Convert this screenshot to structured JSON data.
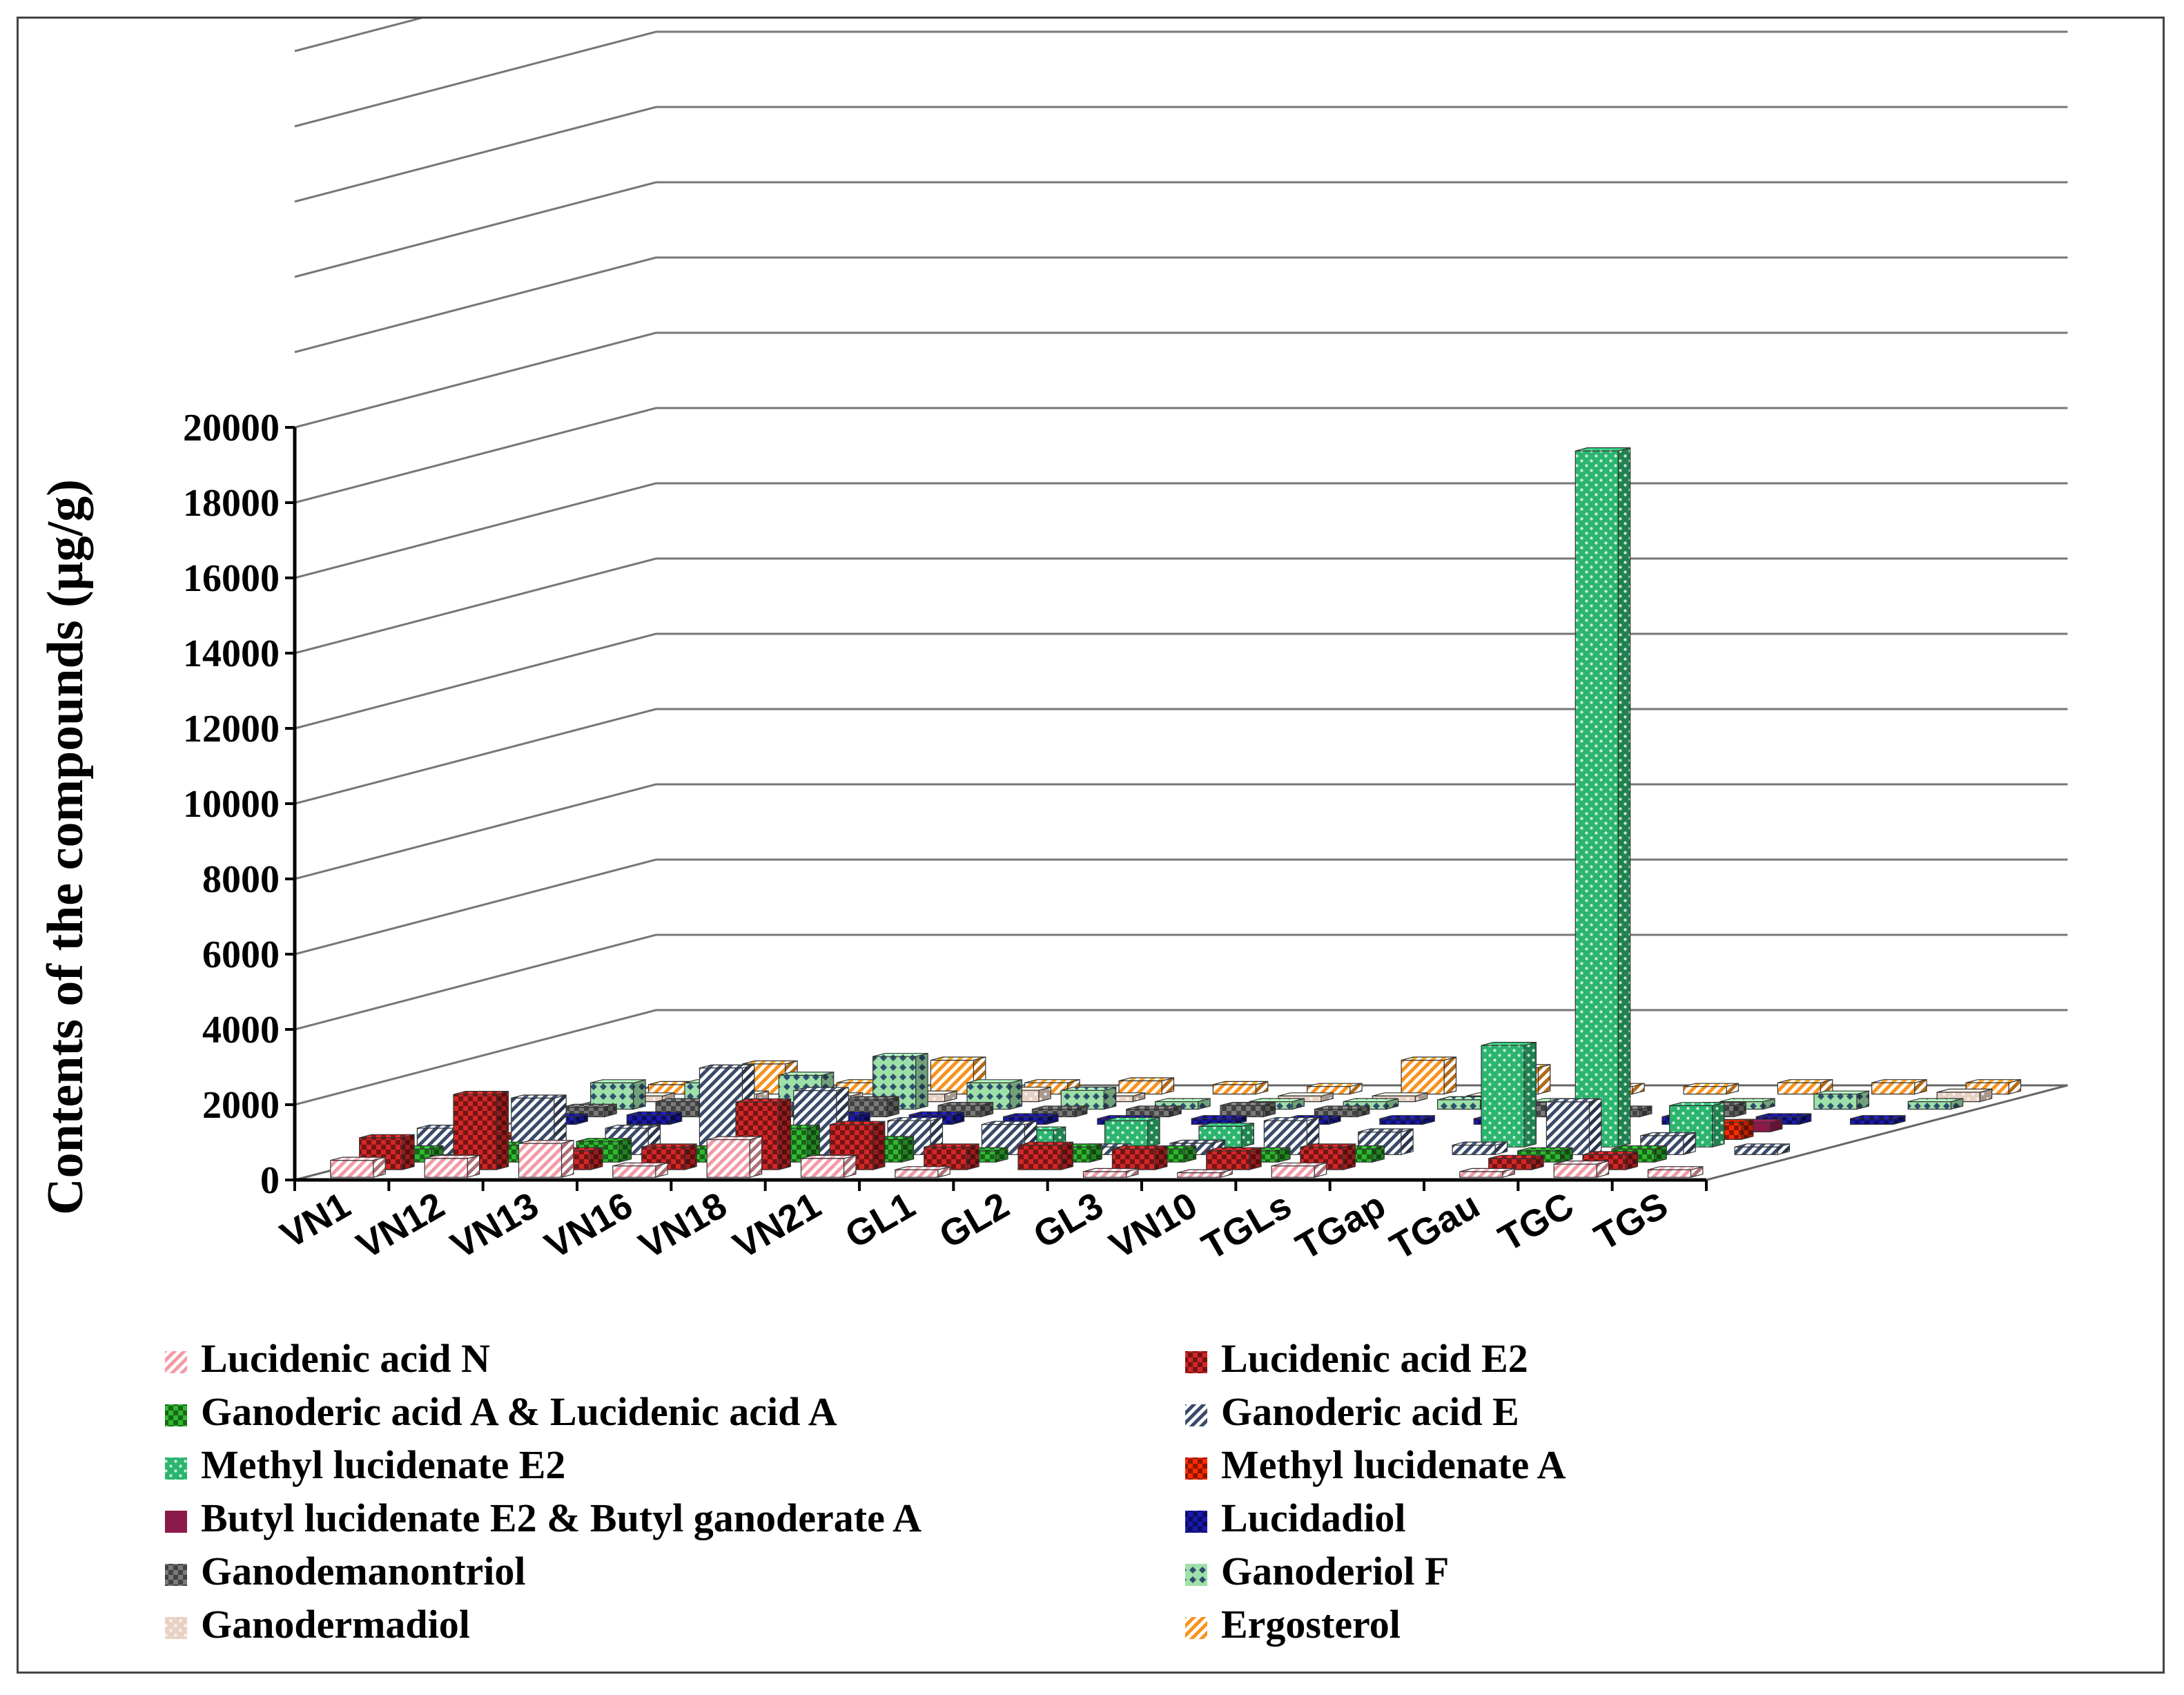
{
  "chart_data": {
    "type": "bar",
    "style": "3d-grouped",
    "title": "",
    "xlabel": "",
    "ylabel": "Contents of the compounds (μg/g)",
    "ylim": [
      0,
      20000
    ],
    "yticks": [
      0,
      2000,
      4000,
      6000,
      8000,
      10000,
      12000,
      14000,
      16000,
      18000,
      20000
    ],
    "ytick_labels": [
      "0",
      "2000",
      "4000",
      "6000",
      "8000",
      "10000",
      "12000",
      "14000",
      "16000",
      "18000",
      "20000"
    ],
    "grid": true,
    "legend_position": "bottom",
    "categories": [
      "VN1",
      "VN12",
      "VN13",
      "VN16",
      "VN18",
      "VN21",
      "GL1",
      "GL2",
      "GL3",
      "VN10",
      "TGLs",
      "TGap",
      "TGau",
      "TGC",
      "TGS"
    ],
    "series": [
      {
        "name": "Lucidenic acid N",
        "color": "#f29aa6",
        "pattern": "diag",
        "values": [
          450,
          500,
          900,
          300,
          1000,
          500,
          200,
          0,
          150,
          120,
          300,
          0,
          150,
          350,
          200
        ]
      },
      {
        "name": "Lucidenic acid E2",
        "color": "#d32626",
        "pattern": "checker",
        "values": [
          850,
          2000,
          500,
          600,
          1800,
          1200,
          600,
          650,
          550,
          500,
          600,
          0,
          300,
          400,
          0
        ]
      },
      {
        "name": "Ganoderic acid A & Lucidenic acid A",
        "color": "#2eb82e",
        "pattern": "checker",
        "values": [
          350,
          450,
          550,
          350,
          900,
          600,
          300,
          400,
          350,
          300,
          350,
          0,
          300,
          350,
          0
        ]
      },
      {
        "name": "Ganoderic acid E",
        "color": "#3a4a6b",
        "pattern": "diag",
        "values": [
          700,
          1500,
          700,
          2300,
          1700,
          900,
          800,
          200,
          300,
          900,
          600,
          250,
          1400,
          500,
          200
        ]
      },
      {
        "name": "Methyl lucidenate E2",
        "color": "#2bb56e",
        "pattern": "dots",
        "values": [
          0,
          0,
          0,
          0,
          0,
          0,
          450,
          700,
          550,
          0,
          0,
          2700,
          18500,
          1100,
          0
        ]
      },
      {
        "name": "Methyl lucidenate A",
        "color": "#ff2a00",
        "pattern": "checker",
        "values": [
          100,
          0,
          0,
          0,
          0,
          0,
          0,
          0,
          0,
          0,
          0,
          0,
          0,
          450,
          0
        ]
      },
      {
        "name": "Butyl lucidenate  E2 & Butyl ganoderate A",
        "color": "#8b1a4a",
        "pattern": "solid",
        "values": [
          0,
          0,
          0,
          0,
          0,
          0,
          0,
          0,
          0,
          0,
          0,
          0,
          0,
          250,
          0
        ]
      },
      {
        "name": "Lucidadiol",
        "color": "#1a1ab0",
        "pattern": "checker",
        "values": [
          200,
          250,
          200,
          250,
          250,
          200,
          150,
          150,
          150,
          150,
          150,
          0,
          200,
          200,
          150
        ]
      },
      {
        "name": "Ganodemanontriol",
        "color": "#7a7a7a",
        "pattern": "checker",
        "values": [
          250,
          400,
          300,
          450,
          300,
          200,
          200,
          300,
          200,
          0,
          300,
          200,
          300,
          0,
          0
        ]
      },
      {
        "name": "Ganoderiol F",
        "color": "#9de0a8",
        "pattern": "diamond",
        "values": [
          700,
          700,
          900,
          1400,
          700,
          500,
          200,
          200,
          200,
          250,
          200,
          0,
          200,
          400,
          200
        ]
      },
      {
        "name": "Ganodermadiol",
        "color": "#e8d2c4",
        "pattern": "dots",
        "values": [
          150,
          200,
          150,
          200,
          300,
          150,
          0,
          150,
          150,
          150,
          0,
          0,
          0,
          0,
          250
        ]
      },
      {
        "name": "Ergosterol",
        "color": "#f7931e",
        "pattern": "diag",
        "values": [
          250,
          800,
          300,
          900,
          300,
          350,
          250,
          200,
          900,
          700,
          200,
          200,
          300,
          300,
          300
        ]
      }
    ]
  }
}
